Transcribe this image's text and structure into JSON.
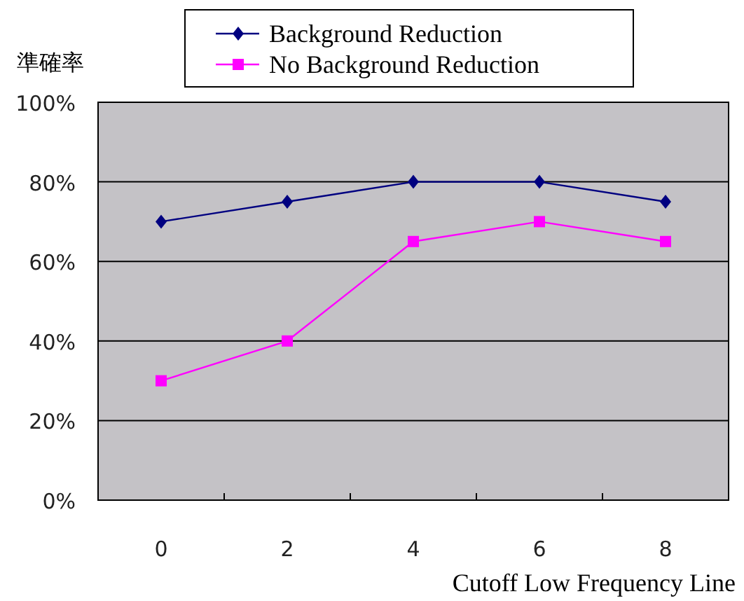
{
  "chart_data": {
    "type": "line",
    "ylabel": "準確率",
    "xlabel": "Cutoff Low Frequency Line",
    "categories": [
      "0",
      "2",
      "4",
      "6",
      "8"
    ],
    "series": [
      {
        "name": "Background Reduction",
        "color": "#000080",
        "marker": "diamond",
        "values": [
          70,
          75,
          80,
          80,
          75
        ]
      },
      {
        "name": "No Background Reduction",
        "color": "#ff00ff",
        "marker": "square",
        "values": [
          30,
          40,
          65,
          70,
          65
        ]
      }
    ],
    "ylim": [
      0,
      100
    ],
    "yticks": [
      {
        "value": 0,
        "label": "0%"
      },
      {
        "value": 20,
        "label": "20%"
      },
      {
        "value": 40,
        "label": "40%"
      },
      {
        "value": 60,
        "label": "60%"
      },
      {
        "value": 80,
        "label": "80%"
      },
      {
        "value": 100,
        "label": "100%"
      }
    ],
    "grid": "y",
    "legend": "top"
  }
}
